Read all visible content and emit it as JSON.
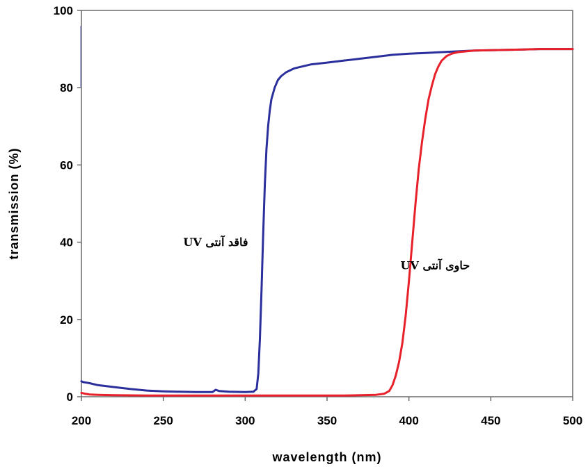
{
  "chart_data": {
    "type": "line",
    "xlabel": "wavelength (nm)",
    "ylabel": "transmission (%)",
    "xlim": [
      200,
      500
    ],
    "ylim": [
      0,
      100
    ],
    "xticks": [
      200,
      250,
      300,
      350,
      400,
      450,
      500
    ],
    "yticks": [
      0,
      20,
      40,
      60,
      80,
      100
    ],
    "grid": false,
    "series": [
      {
        "color": "#2a2f9c",
        "x": [
          200,
          201,
          205,
          210,
          220,
          230,
          240,
          250,
          260,
          270,
          280,
          282,
          284,
          290,
          300,
          305,
          307,
          308,
          309,
          310,
          311,
          312,
          313,
          314,
          315,
          316,
          318,
          320,
          322,
          325,
          330,
          335,
          340,
          350,
          360,
          370,
          380,
          390,
          400,
          410,
          420,
          430,
          440,
          450,
          460,
          470,
          480,
          490,
          500
        ],
        "y": [
          4,
          3.8,
          3.5,
          3.0,
          2.5,
          2.0,
          1.6,
          1.4,
          1.3,
          1.2,
          1.2,
          1.8,
          1.5,
          1.3,
          1.2,
          1.3,
          2,
          6,
          15,
          28,
          42,
          55,
          64,
          70,
          74,
          77,
          80,
          82,
          83,
          84,
          85,
          85.5,
          86,
          86.5,
          87,
          87.5,
          88,
          88.5,
          88.8,
          89,
          89.2,
          89.4,
          89.6,
          89.7,
          89.8,
          89.9,
          90,
          90,
          90
        ]
      },
      {
        "color": "#e8202a",
        "x": [
          200,
          202,
          205,
          210,
          220,
          240,
          260,
          280,
          300,
          320,
          340,
          360,
          380,
          385,
          388,
          390,
          392,
          394,
          396,
          398,
          400,
          402,
          404,
          406,
          408,
          410,
          412,
          414,
          416,
          418,
          420,
          423,
          426,
          430,
          435,
          440,
          450,
          460,
          470,
          480,
          490,
          500
        ],
        "y": [
          1,
          0.8,
          0.6,
          0.5,
          0.4,
          0.3,
          0.3,
          0.3,
          0.3,
          0.3,
          0.3,
          0.3,
          0.5,
          0.8,
          1.5,
          3,
          5.5,
          9,
          14,
          21,
          30,
          40,
          50,
          59,
          66,
          72,
          77,
          80.5,
          83.5,
          85.5,
          87,
          88.2,
          88.8,
          89.2,
          89.4,
          89.6,
          89.7,
          89.8,
          89.9,
          90,
          90,
          90
        ]
      }
    ],
    "annotations": [
      {
        "text": "فاقد آنتی UV",
        "x": 282,
        "y": 39
      },
      {
        "text": "حاوی آنتی UV",
        "x": 416,
        "y": 33
      }
    ]
  }
}
